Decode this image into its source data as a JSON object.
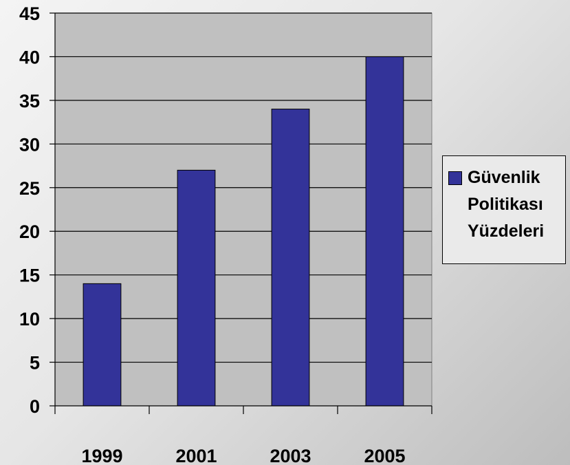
{
  "chart_data": {
    "type": "bar",
    "categories": [
      "1999",
      "2001",
      "2003",
      "2005"
    ],
    "series": [
      {
        "name": "Güvenlik Politikası Yüzdeleri",
        "values": [
          14,
          27,
          34,
          40
        ]
      }
    ],
    "ylim": [
      0,
      45
    ],
    "yticks": [
      "0",
      "5",
      "10",
      "15",
      "20",
      "25",
      "30",
      "35",
      "40",
      "45"
    ],
    "grid": true,
    "legend_position": "right",
    "colors": {
      "bar": "#333399",
      "plot_background": "#c0c0c0"
    }
  }
}
